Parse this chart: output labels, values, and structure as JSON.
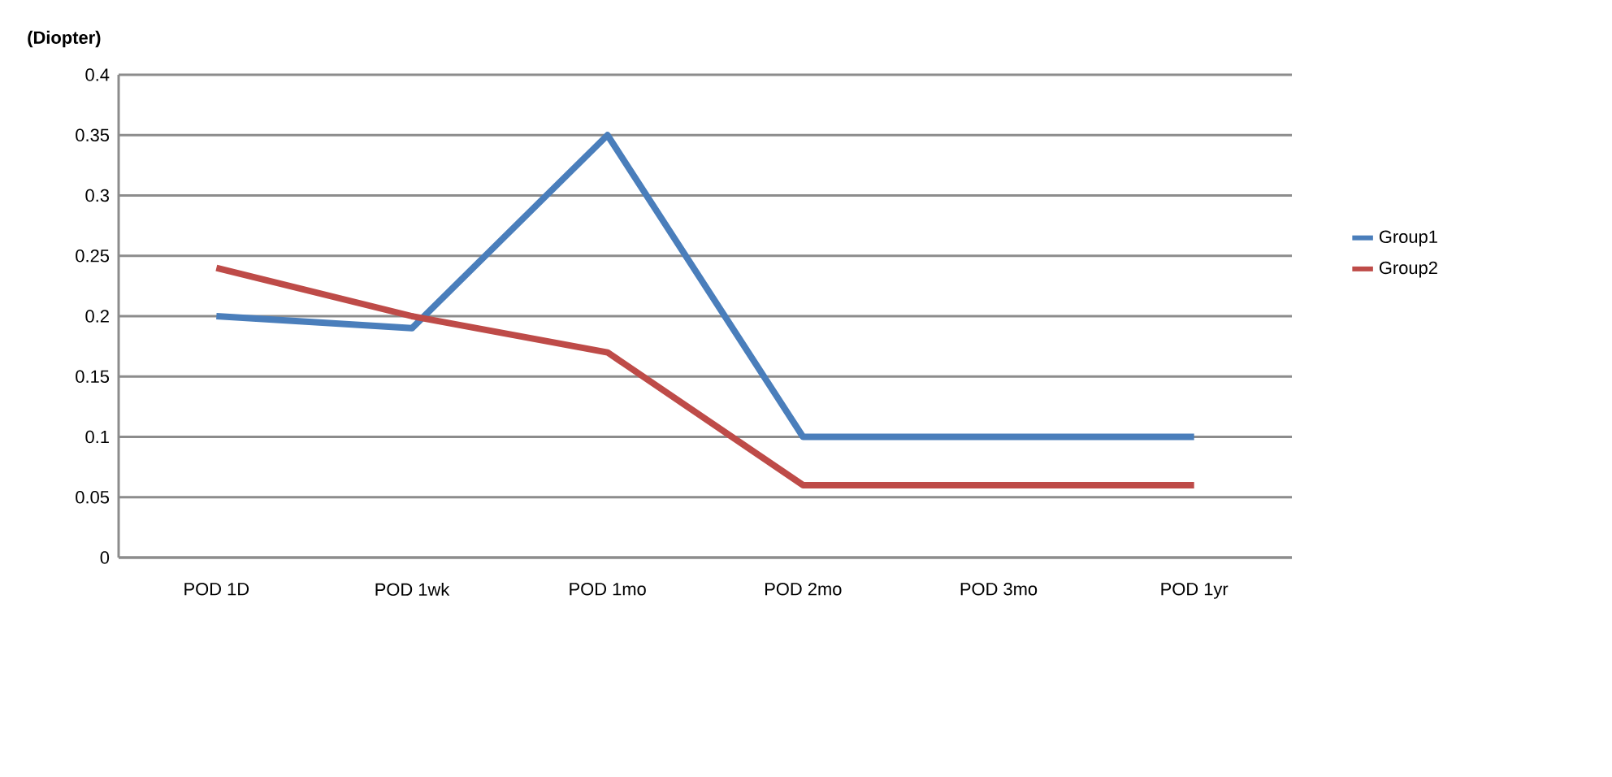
{
  "chart_data": {
    "type": "line",
    "ylabel": "(Diopter)",
    "categories": [
      "POD 1D",
      "POD 1wk",
      "POD 1mo",
      "POD 2mo",
      "POD 3mo",
      "POD 1yr"
    ],
    "series": [
      {
        "name": "Group1",
        "color": "#4a7ebb",
        "values": [
          0.2,
          0.19,
          0.35,
          0.1,
          0.1,
          0.1
        ]
      },
      {
        "name": "Group2",
        "color": "#be4b48",
        "values": [
          0.24,
          0.2,
          0.17,
          0.06,
          0.06,
          0.06
        ]
      }
    ],
    "ylim": [
      0,
      0.4
    ],
    "yticks": [
      0,
      0.05,
      0.1,
      0.15,
      0.2,
      0.25,
      0.3,
      0.35,
      0.4
    ],
    "grid": "y",
    "legend": "right",
    "marker": "none",
    "line_style": "solid"
  }
}
